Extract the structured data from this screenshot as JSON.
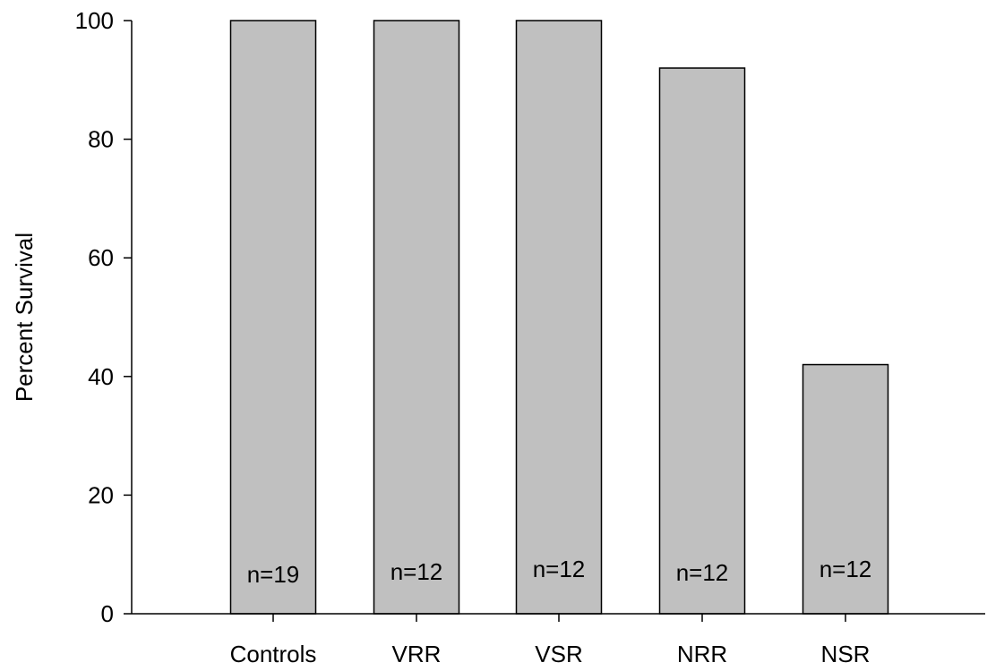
{
  "chart_data": {
    "type": "bar",
    "categories": [
      "Controls",
      "VRR",
      "VSR",
      "NRR",
      "NSR"
    ],
    "values": [
      100,
      100,
      100,
      92,
      42
    ],
    "bar_labels": [
      "n=19",
      "n=12",
      "n=12",
      "n=12",
      "n=12"
    ],
    "title": "",
    "xlabel": "",
    "ylabel": "Percent Survival",
    "ylim": [
      0,
      100
    ],
    "yticks": [
      0,
      20,
      40,
      60,
      80,
      100
    ],
    "grid": false,
    "legend": "none",
    "colors": {
      "bar_fill": "#c0c0c0",
      "bar_stroke": "#000000",
      "axis": "#000000"
    }
  }
}
